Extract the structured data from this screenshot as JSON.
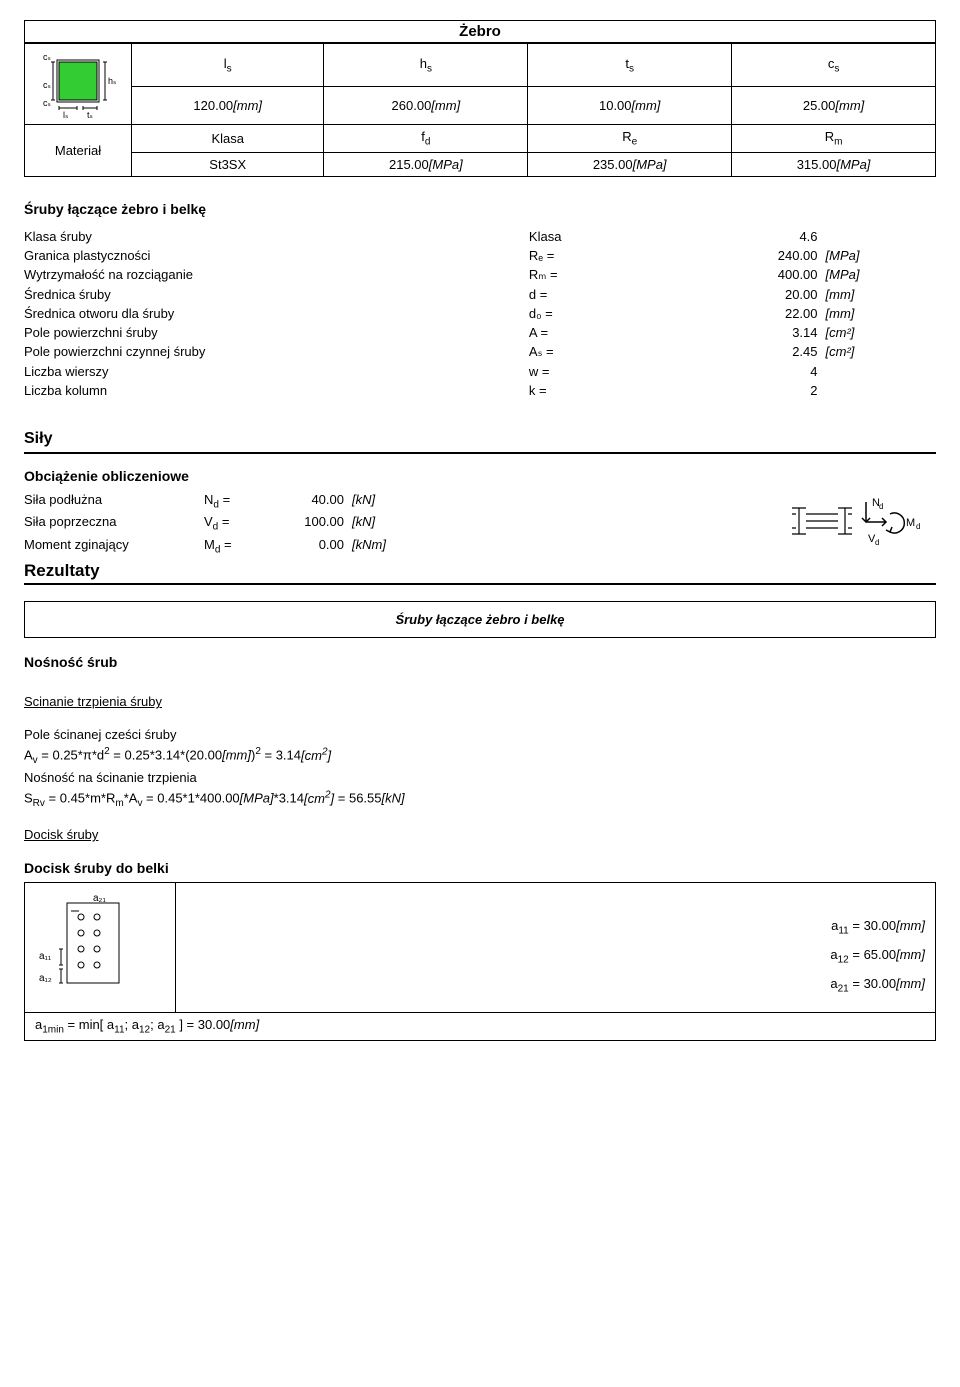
{
  "zebro": {
    "title": "Żebro",
    "headers": [
      "l",
      "h",
      "t",
      "c"
    ],
    "header_sub": "s",
    "values": [
      "120.00",
      "260.00",
      "10.00",
      "25.00"
    ],
    "unit": "[mm]"
  },
  "material": {
    "label": "Materiał",
    "rows": [
      {
        "c1": "Klasa",
        "c2": "f",
        "c2s": "d",
        "c3": "R",
        "c3s": "e",
        "c4": "R",
        "c4s": "m"
      },
      {
        "c1": "St3SX",
        "c2": "215.00",
        "c3": "235.00",
        "c4": "315.00",
        "unit": "[MPa]"
      }
    ]
  },
  "sruby_block": {
    "title": "Śruby łączące żebro i belkę",
    "rows": [
      {
        "lbl": "Klasa śruby",
        "sym": "Klasa",
        "val": "4.6",
        "un": ""
      },
      {
        "lbl": "Granica plastyczności",
        "sym": "Rₑ =",
        "val": "240.00",
        "un": "[MPa]"
      },
      {
        "lbl": "Wytrzymałość na rozciąganie",
        "sym": "Rₘ =",
        "val": "400.00",
        "un": "[MPa]"
      },
      {
        "lbl": "Średnica śruby",
        "sym": "d =",
        "val": "20.00",
        "un": "[mm]"
      },
      {
        "lbl": "Średnica otworu dla śruby",
        "sym": "d₀ =",
        "val": "22.00",
        "un": "[mm]"
      },
      {
        "lbl": "Pole powierzchni śruby",
        "sym": "A =",
        "val": "3.14",
        "un": "[cm²]"
      },
      {
        "lbl": "Pole powierzchni czynnej śruby",
        "sym": "Aₛ =",
        "val": "2.45",
        "un": "[cm²]"
      },
      {
        "lbl": "Liczba wierszy",
        "sym": "w =",
        "val": "4",
        "un": ""
      },
      {
        "lbl": "Liczba kolumn",
        "sym": "k =",
        "val": "2",
        "un": ""
      }
    ]
  },
  "sily": {
    "title": "Siły",
    "obc": "Obciążenie obliczeniowe",
    "rows": [
      {
        "lbl": "Siła podłużna",
        "sym": "N",
        "sub": "d",
        "eq": "=",
        "val": "40.00",
        "un": "[kN]"
      },
      {
        "lbl": "Siła poprzeczna",
        "sym": "V",
        "sub": "d",
        "eq": "=",
        "val": "100.00",
        "un": "[kN]"
      },
      {
        "lbl": "Moment zginający",
        "sym": "M",
        "sub": "d",
        "eq": "=",
        "val": "0.00",
        "un": "[kNm]"
      }
    ]
  },
  "rezultaty": {
    "title": "Rezultaty",
    "box": "Śruby łączące żebro i belkę",
    "nosnosc": "Nośność śrub",
    "scinanie": "Scinanie trzpienia śruby",
    "pole_line1": "Pole ścinanej cześci śruby",
    "pole_line2": "Aᵥ = 0.25*π*d² = 0.25*3.14*(20.00[mm])² = 3.14[cm²]",
    "nos_line1": "Nośność na ścinanie trzpienia",
    "nos_line2": "S_Rv = 0.45*m*Rₘ*Aᵥ = 0.45*1*400.00[MPa]*3.14[cm²] = 56.55[kN]",
    "docisk": "Docisk śruby",
    "docisk_belki": "Docisk śruby do belki",
    "a11": "a₁₁ = 30.00[mm]",
    "a12": "a₁₂ = 65.00[mm]",
    "a21": "a₂₁ = 30.00[mm]",
    "a1min": "a₁ₘᵢₙ = min[ a₁₁; a₁₂; a₂₁ ] = 30.00[mm]"
  },
  "colors": {
    "green": "#33cc33",
    "black": "#000000"
  }
}
